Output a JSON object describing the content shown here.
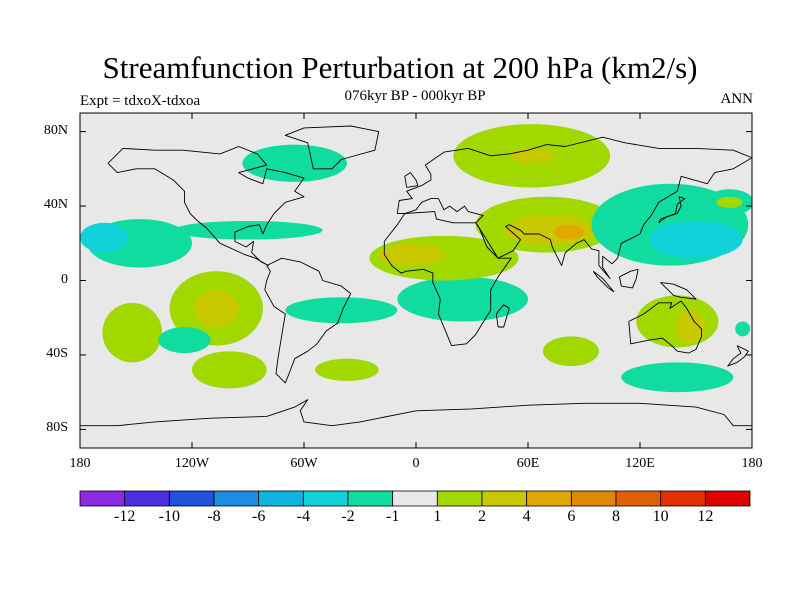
{
  "title": "Streamfunction Perturbation at 200 hPa (km2/s)",
  "left_string": "Expt = tdxoX-tdxoa",
  "center_string": "076kyr BP - 000kyr BP",
  "right_string": "ANN",
  "map": {
    "projection": "cylindrical equidistant",
    "lon_range": [
      -180,
      180
    ],
    "lat_range": [
      -90,
      90
    ],
    "background_color": "#e8e8e8",
    "lat_ticks": [
      {
        "value": 80,
        "label": "80N"
      },
      {
        "value": 40,
        "label": "40N"
      },
      {
        "value": 0,
        "label": "0"
      },
      {
        "value": -40,
        "label": "40S"
      },
      {
        "value": -80,
        "label": "80S"
      }
    ],
    "lon_ticks": [
      {
        "value": -180,
        "label": "180"
      },
      {
        "value": -120,
        "label": "120W"
      },
      {
        "value": -60,
        "label": "60W"
      },
      {
        "value": 0,
        "label": "0"
      },
      {
        "value": 60,
        "label": "60E"
      },
      {
        "value": 120,
        "label": "120E"
      },
      {
        "value": 180,
        "label": "180"
      }
    ]
  },
  "colorbar": {
    "colors": [
      "#8a2be2",
      "#4b2ee0",
      "#1f52d8",
      "#1e8ce0",
      "#10b4e0",
      "#10d2d8",
      "#10dca0",
      "#e8e8e8",
      "#a0d800",
      "#c8c800",
      "#e0a800",
      "#e08800",
      "#e06000",
      "#e03000",
      "#e00000"
    ],
    "labels": [
      "-12",
      "-10",
      "-8",
      "-6",
      "-4",
      "-2",
      "-1",
      "1",
      "2",
      "4",
      "6",
      "8",
      "10",
      "12"
    ]
  },
  "anomaly_fields": [
    {
      "kind": "blob",
      "color": "#10dca0",
      "lon": -148,
      "lat": 20,
      "rx": 28,
      "ry": 13
    },
    {
      "kind": "blob",
      "color": "#10d2d8",
      "lon": -167,
      "lat": 23,
      "rx": 13,
      "ry": 8
    },
    {
      "kind": "blob",
      "color": "#a0d800",
      "lon": -152,
      "lat": -28,
      "rx": 16,
      "ry": 16
    },
    {
      "kind": "blob",
      "color": "#a0d800",
      "lon": -107,
      "lat": -15,
      "rx": 25,
      "ry": 20
    },
    {
      "kind": "blob",
      "color": "#c8c800",
      "lon": -107,
      "lat": -15,
      "rx": 12,
      "ry": 10
    },
    {
      "kind": "blob",
      "color": "#10dca0",
      "lon": -124,
      "lat": -32,
      "rx": 14,
      "ry": 7
    },
    {
      "kind": "blob",
      "color": "#a0d800",
      "lon": -100,
      "lat": -48,
      "rx": 20,
      "ry": 10
    },
    {
      "kind": "blob",
      "color": "#10dca0",
      "lon": -90,
      "lat": 27,
      "rx": 40,
      "ry": 5
    },
    {
      "kind": "blob",
      "color": "#10dca0",
      "lon": -65,
      "lat": 63,
      "rx": 28,
      "ry": 10
    },
    {
      "kind": "blob",
      "color": "#10dca0",
      "lon": -40,
      "lat": -16,
      "rx": 30,
      "ry": 7
    },
    {
      "kind": "blob",
      "color": "#a0d800",
      "lon": -37,
      "lat": -48,
      "rx": 17,
      "ry": 6
    },
    {
      "kind": "blob",
      "color": "#10dca0",
      "lon": 25,
      "lat": -10,
      "rx": 35,
      "ry": 12
    },
    {
      "kind": "blob",
      "color": "#a0d800",
      "lon": 15,
      "lat": 12,
      "rx": 40,
      "ry": 12
    },
    {
      "kind": "blob",
      "color": "#c8c800",
      "lon": -2,
      "lat": 14,
      "rx": 18,
      "ry": 6
    },
    {
      "kind": "blob",
      "color": "#a0d800",
      "lon": 62,
      "lat": 67,
      "rx": 42,
      "ry": 17
    },
    {
      "kind": "blob",
      "color": "#c8c800",
      "lon": 62,
      "lat": 67,
      "rx": 12,
      "ry": 4
    },
    {
      "kind": "blob",
      "color": "#a0d800",
      "lon": 70,
      "lat": 30,
      "rx": 38,
      "ry": 15
    },
    {
      "kind": "blob",
      "color": "#c8c800",
      "lon": 72,
      "lat": 27,
      "rx": 25,
      "ry": 8
    },
    {
      "kind": "blob",
      "color": "#e0a800",
      "lon": 82,
      "lat": 26,
      "rx": 8,
      "ry": 4
    },
    {
      "kind": "blob",
      "color": "#a0d800",
      "lon": 83,
      "lat": -38,
      "rx": 15,
      "ry": 8
    },
    {
      "kind": "blob",
      "color": "#10dca0",
      "lon": 136,
      "lat": 30,
      "rx": 42,
      "ry": 22
    },
    {
      "kind": "blob",
      "color": "#10d2d8",
      "lon": 150,
      "lat": 22,
      "rx": 25,
      "ry": 10
    },
    {
      "kind": "blob",
      "color": "#10dca0",
      "lon": 168,
      "lat": 42,
      "rx": 13,
      "ry": 7
    },
    {
      "kind": "blob",
      "color": "#a0d800",
      "lon": 168,
      "lat": 42,
      "rx": 7,
      "ry": 3
    },
    {
      "kind": "blob",
      "color": "#a0d800",
      "lon": 140,
      "lat": -22,
      "rx": 22,
      "ry": 14
    },
    {
      "kind": "blob",
      "color": "#c8c800",
      "lon": 147,
      "lat": -25,
      "rx": 8,
      "ry": 9
    },
    {
      "kind": "blob",
      "color": "#10dca0",
      "lon": 140,
      "lat": -52,
      "rx": 30,
      "ry": 8
    },
    {
      "kind": "blob",
      "color": "#10dca0",
      "lon": 175,
      "lat": -26,
      "rx": 4,
      "ry": 4
    }
  ],
  "coastlines": [
    {
      "name": "north-america",
      "points": [
        [
          -165,
          63
        ],
        [
          -157,
          71
        ],
        [
          -140,
          70
        ],
        [
          -125,
          70
        ],
        [
          -105,
          68
        ],
        [
          -95,
          72
        ],
        [
          -85,
          68
        ],
        [
          -80,
          62
        ],
        [
          -95,
          58
        ],
        [
          -90,
          55
        ],
        [
          -82,
          52
        ],
        [
          -80,
          60
        ],
        [
          -70,
          58
        ],
        [
          -60,
          55
        ],
        [
          -65,
          48
        ],
        [
          -60,
          45
        ],
        [
          -70,
          42
        ],
        [
          -76,
          36
        ],
        [
          -80,
          30
        ],
        [
          -82,
          25
        ],
        [
          -84,
          30
        ],
        [
          -90,
          29
        ],
        [
          -97,
          26
        ],
        [
          -97,
          21
        ],
        [
          -91,
          18
        ],
        [
          -87,
          21
        ],
        [
          -88,
          15
        ],
        [
          -83,
          10
        ],
        [
          -79,
          8
        ],
        [
          -86,
          12
        ],
        [
          -92,
          14
        ],
        [
          -105,
          20
        ],
        [
          -112,
          28
        ],
        [
          -117,
          32
        ],
        [
          -121,
          36
        ],
        [
          -124,
          42
        ],
        [
          -124,
          48
        ],
        [
          -130,
          54
        ],
        [
          -140,
          60
        ],
        [
          -150,
          60
        ],
        [
          -160,
          58
        ],
        [
          -165,
          63
        ]
      ]
    },
    {
      "name": "greenland",
      "points": [
        [
          -55,
          60
        ],
        [
          -45,
          60
        ],
        [
          -40,
          65
        ],
        [
          -22,
          70
        ],
        [
          -20,
          80
        ],
        [
          -35,
          83
        ],
        [
          -60,
          82
        ],
        [
          -70,
          78
        ],
        [
          -58,
          74
        ],
        [
          -55,
          60
        ]
      ]
    },
    {
      "name": "south-america",
      "points": [
        [
          -80,
          8
        ],
        [
          -72,
          12
        ],
        [
          -62,
          10
        ],
        [
          -52,
          5
        ],
        [
          -50,
          0
        ],
        [
          -40,
          -3
        ],
        [
          -35,
          -7
        ],
        [
          -39,
          -15
        ],
        [
          -42,
          -23
        ],
        [
          -48,
          -27
        ],
        [
          -53,
          -34
        ],
        [
          -58,
          -38
        ],
        [
          -65,
          -42
        ],
        [
          -68,
          -50
        ],
        [
          -70,
          -55
        ],
        [
          -75,
          -50
        ],
        [
          -74,
          -42
        ],
        [
          -72,
          -30
        ],
        [
          -70,
          -18
        ],
        [
          -76,
          -14
        ],
        [
          -81,
          -5
        ],
        [
          -80,
          0
        ],
        [
          -78,
          5
        ],
        [
          -80,
          8
        ]
      ]
    },
    {
      "name": "eurasia",
      "points": [
        [
          -10,
          36
        ],
        [
          -9,
          43
        ],
        [
          -2,
          44
        ],
        [
          -5,
          48
        ],
        [
          3,
          51
        ],
        [
          8,
          54
        ],
        [
          8,
          57
        ],
        [
          5,
          62
        ],
        [
          15,
          69
        ],
        [
          28,
          71
        ],
        [
          40,
          67
        ],
        [
          50,
          68
        ],
        [
          60,
          70
        ],
        [
          70,
          73
        ],
        [
          80,
          72
        ],
        [
          100,
          77
        ],
        [
          112,
          74
        ],
        [
          130,
          71
        ],
        [
          150,
          71
        ],
        [
          170,
          70
        ],
        [
          180,
          66
        ],
        [
          170,
          60
        ],
        [
          160,
          58
        ],
        [
          156,
          52
        ],
        [
          142,
          56
        ],
        [
          140,
          48
        ],
        [
          130,
          42
        ],
        [
          126,
          35
        ],
        [
          122,
          30
        ],
        [
          120,
          25
        ],
        [
          110,
          20
        ],
        [
          108,
          12
        ],
        [
          105,
          9
        ],
        [
          100,
          13
        ],
        [
          100,
          7
        ],
        [
          104,
          1
        ],
        [
          98,
          8
        ],
        [
          98,
          16
        ],
        [
          94,
          17
        ],
        [
          90,
          22
        ],
        [
          86,
          20
        ],
        [
          80,
          15
        ],
        [
          78,
          8
        ],
        [
          73,
          18
        ],
        [
          72,
          22
        ],
        [
          66,
          25
        ],
        [
          58,
          25
        ],
        [
          56,
          27
        ],
        [
          50,
          30
        ],
        [
          48,
          29
        ],
        [
          56,
          22
        ],
        [
          52,
          16
        ],
        [
          44,
          12
        ],
        [
          34,
          28
        ],
        [
          32,
          31
        ],
        [
          36,
          35
        ],
        [
          28,
          37
        ],
        [
          26,
          40
        ],
        [
          22,
          37
        ],
        [
          18,
          40
        ],
        [
          15,
          38
        ],
        [
          12,
          44
        ],
        [
          8,
          44
        ],
        [
          3,
          42
        ],
        [
          0,
          38
        ],
        [
          -6,
          36
        ],
        [
          -10,
          36
        ]
      ]
    },
    {
      "name": "africa",
      "points": [
        [
          -17,
          21
        ],
        [
          -10,
          30
        ],
        [
          -6,
          36
        ],
        [
          10,
          37
        ],
        [
          11,
          33
        ],
        [
          20,
          31
        ],
        [
          32,
          31
        ],
        [
          34,
          28
        ],
        [
          38,
          18
        ],
        [
          44,
          12
        ],
        [
          51,
          12
        ],
        [
          44,
          2
        ],
        [
          40,
          -5
        ],
        [
          40,
          -16
        ],
        [
          35,
          -24
        ],
        [
          32,
          -29
        ],
        [
          27,
          -34
        ],
        [
          19,
          -35
        ],
        [
          17,
          -30
        ],
        [
          12,
          -18
        ],
        [
          13,
          -10
        ],
        [
          9,
          -1
        ],
        [
          9,
          4
        ],
        [
          4,
          6
        ],
        [
          -5,
          5
        ],
        [
          -8,
          4
        ],
        [
          -13,
          8
        ],
        [
          -17,
          14
        ],
        [
          -17,
          21
        ]
      ]
    },
    {
      "name": "australia",
      "points": [
        [
          114,
          -22
        ],
        [
          122,
          -18
        ],
        [
          130,
          -12
        ],
        [
          137,
          -12
        ],
        [
          136,
          -15
        ],
        [
          142,
          -11
        ],
        [
          145,
          -15
        ],
        [
          149,
          -22
        ],
        [
          153,
          -26
        ],
        [
          153,
          -30
        ],
        [
          150,
          -37
        ],
        [
          146,
          -39
        ],
        [
          140,
          -38
        ],
        [
          137,
          -35
        ],
        [
          132,
          -31
        ],
        [
          125,
          -32
        ],
        [
          115,
          -34
        ],
        [
          114,
          -22
        ]
      ]
    },
    {
      "name": "antarctica",
      "points": [
        [
          -180,
          -78
        ],
        [
          -160,
          -78
        ],
        [
          -140,
          -76
        ],
        [
          -110,
          -74
        ],
        [
          -80,
          -73
        ],
        [
          -65,
          -68
        ],
        [
          -58,
          -64
        ],
        [
          -62,
          -70
        ],
        [
          -60,
          -76
        ],
        [
          -45,
          -78
        ],
        [
          -30,
          -76
        ],
        [
          0,
          -70
        ],
        [
          30,
          -69
        ],
        [
          60,
          -67
        ],
        [
          90,
          -66
        ],
        [
          120,
          -66
        ],
        [
          150,
          -68
        ],
        [
          165,
          -72
        ],
        [
          170,
          -78
        ],
        [
          180,
          -78
        ]
      ]
    },
    {
      "name": "madagascar",
      "points": [
        [
          44,
          -25
        ],
        [
          43,
          -18
        ],
        [
          47,
          -13
        ],
        [
          50,
          -15
        ],
        [
          47,
          -25
        ],
        [
          44,
          -25
        ]
      ]
    },
    {
      "name": "britain",
      "points": [
        [
          -5,
          50
        ],
        [
          1,
          51
        ],
        [
          0,
          54
        ],
        [
          -3,
          58
        ],
        [
          -6,
          56
        ],
        [
          -5,
          50
        ]
      ]
    },
    {
      "name": "japan",
      "points": [
        [
          130,
          31
        ],
        [
          134,
          34
        ],
        [
          140,
          36
        ],
        [
          142,
          40
        ],
        [
          141,
          45
        ],
        [
          144,
          44
        ],
        [
          140,
          41
        ],
        [
          139,
          36
        ],
        [
          131,
          33
        ],
        [
          130,
          31
        ]
      ]
    },
    {
      "name": "new-zealand",
      "points": [
        [
          172,
          -35
        ],
        [
          178,
          -38
        ],
        [
          176,
          -41
        ],
        [
          172,
          -44
        ],
        [
          167,
          -46
        ],
        [
          170,
          -42
        ],
        [
          174,
          -39
        ],
        [
          172,
          -35
        ]
      ]
    },
    {
      "name": "borneo",
      "points": [
        [
          109,
          2
        ],
        [
          115,
          5
        ],
        [
          119,
          6
        ],
        [
          118,
          1
        ],
        [
          116,
          -4
        ],
        [
          110,
          -3
        ],
        [
          109,
          2
        ]
      ]
    },
    {
      "name": "sumatra",
      "points": [
        [
          95,
          5
        ],
        [
          100,
          1
        ],
        [
          106,
          -6
        ],
        [
          103,
          -4
        ],
        [
          97,
          2
        ],
        [
          95,
          5
        ]
      ]
    },
    {
      "name": "new-guinea",
      "points": [
        [
          131,
          -1
        ],
        [
          138,
          -2
        ],
        [
          145,
          -5
        ],
        [
          150,
          -10
        ],
        [
          142,
          -9
        ],
        [
          138,
          -8
        ],
        [
          131,
          -1
        ]
      ]
    }
  ]
}
